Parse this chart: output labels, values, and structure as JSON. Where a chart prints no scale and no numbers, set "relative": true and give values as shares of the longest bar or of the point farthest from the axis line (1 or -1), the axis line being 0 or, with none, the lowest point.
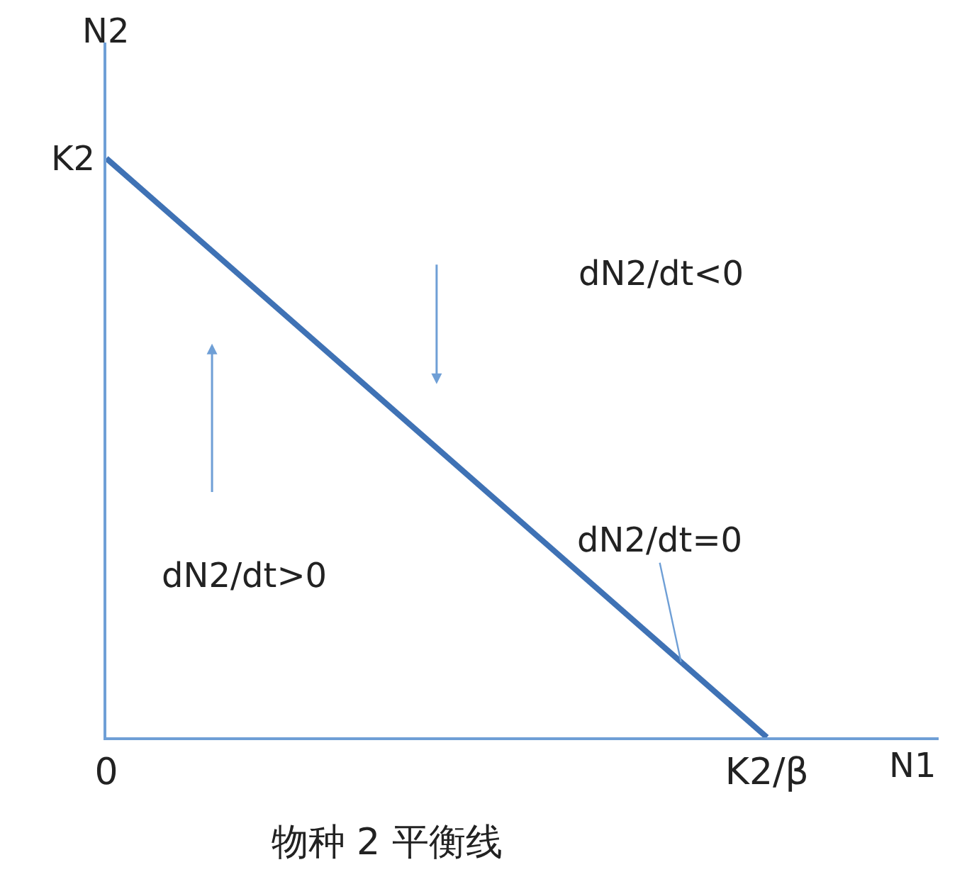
{
  "chart_data": {
    "type": "line",
    "relative": true,
    "title": "物种 2 平衡线",
    "xlabel": "N1",
    "ylabel": "N2",
    "categories": [
      "0",
      "K2/β"
    ],
    "series": [
      {
        "color": "#3f72b5",
        "values": [
          1,
          0
        ]
      }
    ],
    "annotations": [
      "K2",
      "dN2/dt<0",
      "dN2/dt>0",
      "dN2/dt=0"
    ],
    "legend": false,
    "marker": "none",
    "line_style": "solid"
  }
}
